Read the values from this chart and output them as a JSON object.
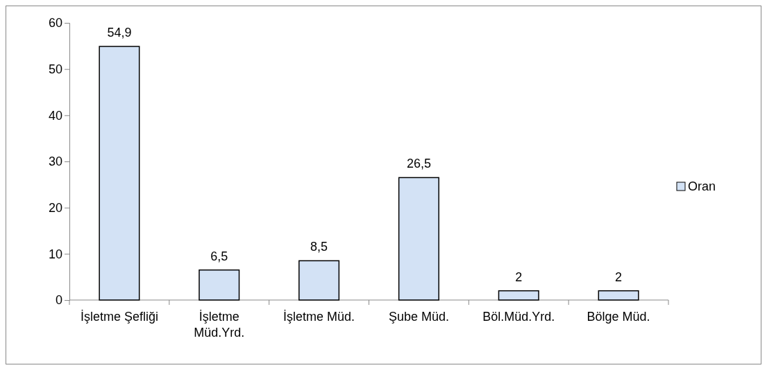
{
  "chart_data": {
    "type": "bar",
    "categories": [
      "İşletme Şefliği",
      "İşletme Müd.Yrd.",
      "İşletme Müd.",
      "Şube Müd.",
      "Böl.Müd.Yrd.",
      "Bölge Müd."
    ],
    "series": [
      {
        "name": "Oran",
        "color": "#d3e2f5",
        "values": [
          54.9,
          6.5,
          8.5,
          26.5,
          2,
          2
        ],
        "value_labels": [
          "54,9",
          "6,5",
          "8,5",
          "26,5",
          "2",
          "2"
        ]
      }
    ],
    "ylim": [
      0,
      60
    ],
    "yticks": [
      0,
      10,
      20,
      30,
      40,
      50,
      60
    ],
    "grid": false,
    "legend": "right"
  }
}
